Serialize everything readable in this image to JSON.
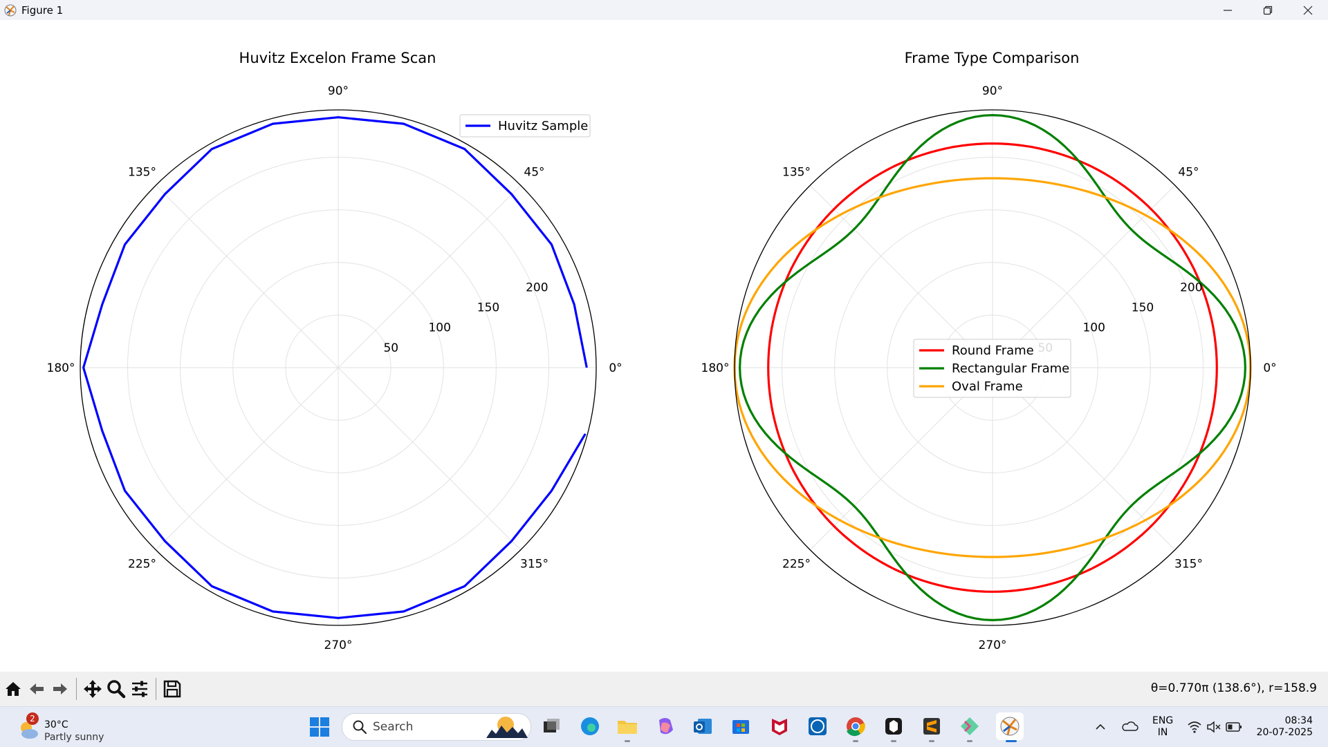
{
  "window": {
    "title": "Figure 1"
  },
  "chart_data": [
    {
      "type": "line",
      "projection": "polar",
      "title": "Huvitz Excelon Frame Scan",
      "theta_tick_labels": [
        "0°",
        "45°",
        "90°",
        "135°",
        "180°",
        "225°",
        "270°",
        "315°"
      ],
      "r_tick_labels": [
        "50",
        "100",
        "150",
        "200"
      ],
      "r_label_position_deg": 22.5,
      "rlim": [
        0,
        245
      ],
      "grid": true,
      "legend": {
        "position": "upper right",
        "entries": [
          "Huvitz Sample"
        ]
      },
      "series": [
        {
          "name": "Huvitz Sample",
          "color": "#0000ff",
          "theta_deg": [
            0,
            15,
            30,
            45,
            60,
            75,
            90,
            105,
            120,
            135,
            150,
            165,
            180,
            195,
            210,
            225,
            240,
            255,
            270,
            285,
            300,
            315,
            330,
            345
          ],
          "r": [
            236,
            232,
            234,
            233,
            240,
            240,
            238,
            240,
            240,
            233,
            234,
            232,
            242,
            232,
            234,
            233,
            240,
            240,
            238,
            240,
            240,
            233,
            234,
            243
          ]
        }
      ]
    },
    {
      "type": "line",
      "projection": "polar",
      "title": "Frame Type Comparison",
      "theta_tick_labels": [
        "0°",
        "45°",
        "90°",
        "135°",
        "180°",
        "225°",
        "270°",
        "315°"
      ],
      "r_tick_labels": [
        "50",
        "100",
        "150",
        "200"
      ],
      "r_label_position_deg": 22.5,
      "rlim": [
        0,
        245
      ],
      "grid": true,
      "legend": {
        "position": "center",
        "entries": [
          "Round Frame",
          "Rectangular Frame",
          "Oval Frame"
        ]
      },
      "series": [
        {
          "name": "Round Frame",
          "color": "#ff0000",
          "description": "constant r = 213"
        },
        {
          "name": "Rectangular Frame",
          "color": "#008000",
          "description": "r = 213 + 27·sin(4θ + 90°)"
        },
        {
          "name": "Oval Frame",
          "color": "#ffa500",
          "description": "ellipse with semi-axes 245 (x) and 180 (y)"
        }
      ]
    }
  ],
  "toolbar": {
    "tools": [
      "home-icon",
      "back-icon",
      "forward-icon",
      "pan-icon",
      "zoom-icon",
      "configure-subplots-icon",
      "save-icon"
    ],
    "coords": "θ=0.770π (138.6°), r=158.9"
  },
  "taskbar": {
    "weather_temp": "30°C",
    "weather_desc": "Partly sunny",
    "weather_badge": "2",
    "search_placeholder": "Search",
    "lang_line1": "ENG",
    "lang_line2": "IN",
    "time": "08:34",
    "date": "20-07-2025"
  }
}
